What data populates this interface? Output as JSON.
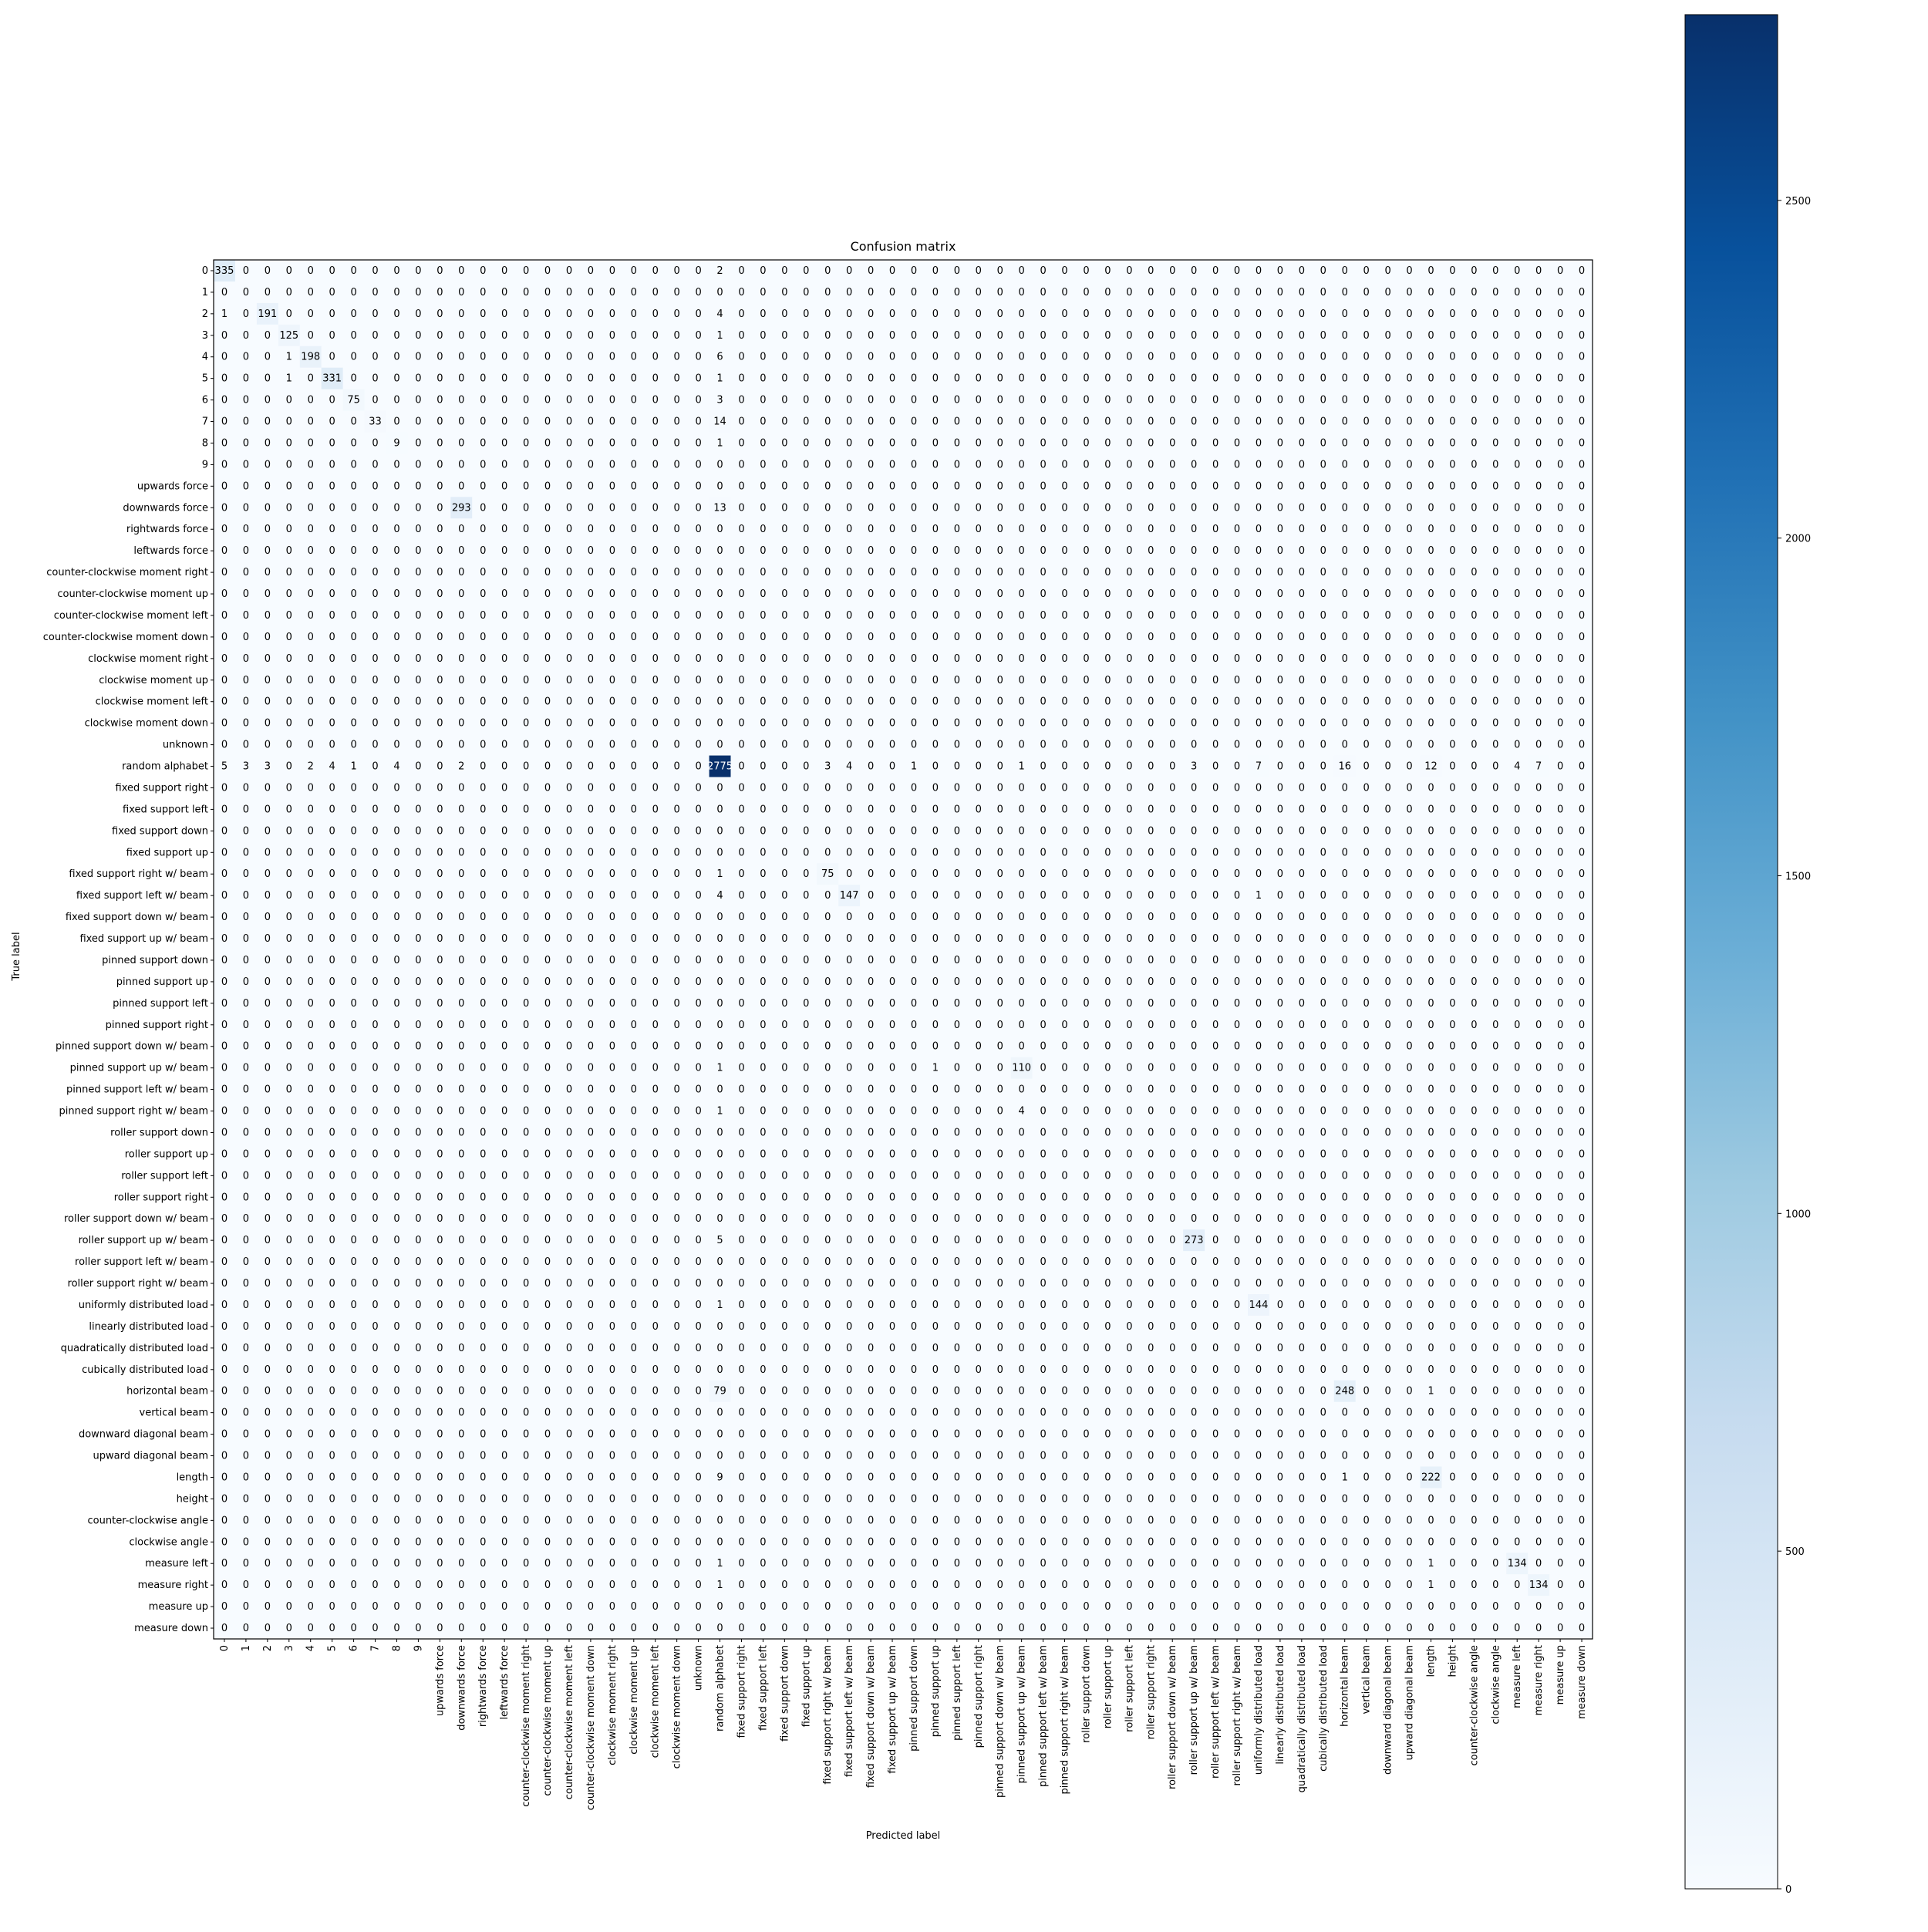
{
  "chart_data": {
    "type": "heatmap",
    "title": "Confusion matrix",
    "xlabel": "Predicted label",
    "ylabel": "True label",
    "labels": [
      "0",
      "1",
      "2",
      "3",
      "4",
      "5",
      "6",
      "7",
      "8",
      "9",
      "upwards force",
      "downwards force",
      "rightwards force",
      "leftwards force",
      "counter-clockwise moment right",
      "counter-clockwise moment up",
      "counter-clockwise moment left",
      "counter-clockwise moment down",
      "clockwise moment right",
      "clockwise moment up",
      "clockwise moment left",
      "clockwise moment down",
      "unknown",
      "random alphabet",
      "fixed support right",
      "fixed support left",
      "fixed support down",
      "fixed support up",
      "fixed support right w/ beam",
      "fixed support left w/ beam",
      "fixed support down w/ beam",
      "fixed support up w/ beam",
      "pinned support down",
      "pinned support up",
      "pinned support left",
      "pinned support right",
      "pinned support down w/ beam",
      "pinned support up w/ beam",
      "pinned support left w/ beam",
      "pinned support right w/ beam",
      "roller support down",
      "roller support up",
      "roller support left",
      "roller support right",
      "roller support down w/ beam",
      "roller support up w/ beam",
      "roller support left w/ beam",
      "roller support right w/ beam",
      "uniformly distributed load",
      "linearly distributed load",
      "quadratically distributed load",
      "cubically distributed load",
      "horizontal beam",
      "vertical beam",
      "downward diagonal beam",
      "upward diagonal beam",
      "length",
      "height",
      "counter-clockwise angle",
      "clockwise angle",
      "measure left",
      "measure right",
      "measure up",
      "measure down"
    ],
    "nonzero": [
      [
        0,
        0,
        335
      ],
      [
        0,
        23,
        2
      ],
      [
        2,
        0,
        1
      ],
      [
        2,
        2,
        191
      ],
      [
        2,
        23,
        4
      ],
      [
        3,
        3,
        125
      ],
      [
        3,
        23,
        1
      ],
      [
        4,
        3,
        1
      ],
      [
        4,
        4,
        198
      ],
      [
        4,
        23,
        6
      ],
      [
        5,
        3,
        1
      ],
      [
        5,
        5,
        331
      ],
      [
        5,
        23,
        1
      ],
      [
        6,
        6,
        75
      ],
      [
        6,
        23,
        3
      ],
      [
        7,
        7,
        33
      ],
      [
        7,
        23,
        14
      ],
      [
        8,
        8,
        9
      ],
      [
        8,
        23,
        1
      ],
      [
        11,
        11,
        293
      ],
      [
        11,
        23,
        13
      ],
      [
        23,
        0,
        5
      ],
      [
        23,
        1,
        3
      ],
      [
        23,
        2,
        3
      ],
      [
        23,
        4,
        2
      ],
      [
        23,
        5,
        4
      ],
      [
        23,
        6,
        1
      ],
      [
        23,
        8,
        4
      ],
      [
        23,
        11,
        2
      ],
      [
        23,
        23,
        2775
      ],
      [
        23,
        28,
        3
      ],
      [
        23,
        29,
        4
      ],
      [
        23,
        32,
        1
      ],
      [
        23,
        37,
        1
      ],
      [
        23,
        45,
        3
      ],
      [
        23,
        48,
        7
      ],
      [
        23,
        52,
        16
      ],
      [
        23,
        56,
        12
      ],
      [
        23,
        60,
        4
      ],
      [
        23,
        61,
        7
      ],
      [
        28,
        23,
        1
      ],
      [
        28,
        28,
        75
      ],
      [
        29,
        23,
        4
      ],
      [
        29,
        29,
        147
      ],
      [
        29,
        48,
        1
      ],
      [
        37,
        23,
        1
      ],
      [
        37,
        33,
        1
      ],
      [
        37,
        37,
        110
      ],
      [
        39,
        23,
        1
      ],
      [
        39,
        37,
        4
      ],
      [
        45,
        23,
        5
      ],
      [
        45,
        45,
        273
      ],
      [
        48,
        23,
        1
      ],
      [
        48,
        48,
        144
      ],
      [
        52,
        23,
        79
      ],
      [
        52,
        52,
        248
      ],
      [
        52,
        56,
        1
      ],
      [
        56,
        23,
        9
      ],
      [
        56,
        52,
        1
      ],
      [
        56,
        56,
        222
      ],
      [
        60,
        23,
        1
      ],
      [
        60,
        56,
        1
      ],
      [
        60,
        60,
        134
      ],
      [
        61,
        23,
        1
      ],
      [
        61,
        56,
        1
      ],
      [
        61,
        61,
        134
      ]
    ],
    "vmin": 0,
    "vmax": 2775,
    "colorbar_ticks": [
      0,
      500,
      1000,
      1500,
      2000,
      2500
    ],
    "colormap": "Blues",
    "grid": false
  }
}
